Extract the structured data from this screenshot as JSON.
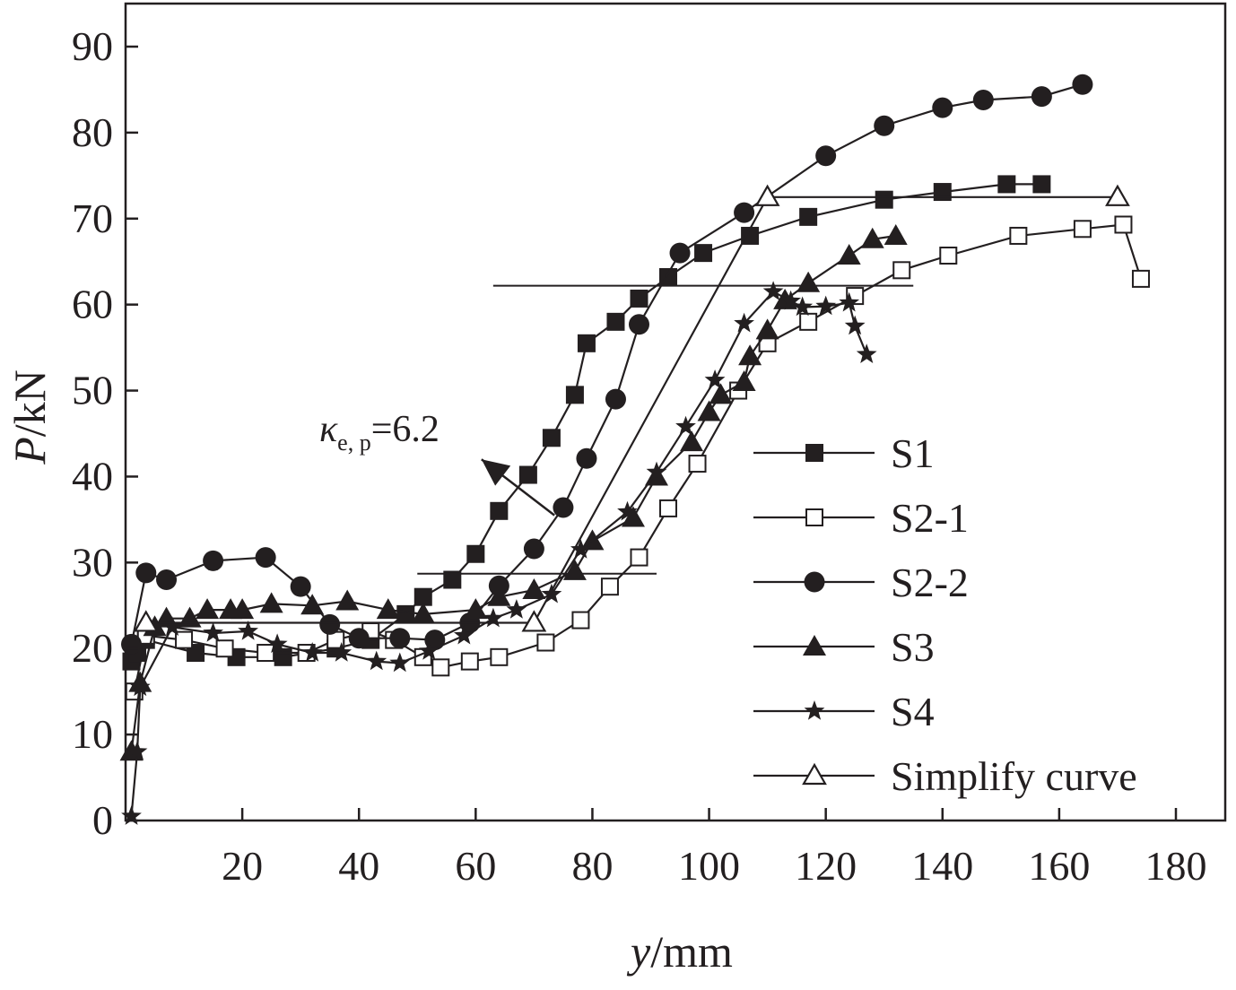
{
  "chart_data": {
    "type": "line",
    "xlabel": {
      "var": "y",
      "unit": "/mm"
    },
    "ylabel": {
      "var": "P",
      "unit": "/kN"
    },
    "xlim": [
      0,
      180
    ],
    "ylim": [
      0,
      90
    ],
    "xticks": [
      20,
      40,
      60,
      80,
      100,
      120,
      140,
      160,
      180
    ],
    "yticks": [
      0,
      10,
      20,
      30,
      40,
      50,
      60,
      70,
      80,
      90
    ],
    "grid": false,
    "legend_position": "right",
    "annotation": {
      "symbol": "κ",
      "subscript": "e, p",
      "value": "=6.2",
      "arrow_from": [
        73.5,
        35.5
      ],
      "arrow_to": [
        61,
        42
      ]
    },
    "reference_lines": [
      {
        "y": 62.2,
        "x": [
          63,
          135
        ]
      },
      {
        "y": 28.7,
        "x": [
          50,
          91
        ]
      },
      {
        "y": 23.0,
        "x": [
          5,
          68
        ]
      }
    ],
    "series": [
      {
        "name": "S1",
        "marker": "square-filled",
        "points": [
          [
            1.0,
            18.5
          ],
          [
            2.0,
            19.5
          ],
          [
            3.5,
            21.0
          ],
          [
            12,
            19.5
          ],
          [
            19,
            19
          ],
          [
            27,
            19
          ],
          [
            36,
            20
          ],
          [
            42,
            21
          ],
          [
            48,
            24
          ],
          [
            51,
            26
          ],
          [
            56,
            28
          ],
          [
            60,
            31
          ],
          [
            64,
            36
          ],
          [
            69,
            40.2
          ],
          [
            73,
            44.5
          ],
          [
            77,
            49.5
          ],
          [
            79,
            55.5
          ],
          [
            84,
            58
          ],
          [
            88,
            60.7
          ],
          [
            93,
            63.2
          ],
          [
            99,
            66
          ],
          [
            107,
            68
          ],
          [
            117,
            70.2
          ],
          [
            130,
            72.2
          ],
          [
            140,
            73.1
          ],
          [
            151,
            74
          ],
          [
            157,
            74
          ]
        ]
      },
      {
        "name": "S2-1",
        "marker": "square-open",
        "points": [
          [
            1.5,
            15.0
          ],
          [
            3.5,
            21.5
          ],
          [
            10,
            21
          ],
          [
            17,
            20
          ],
          [
            24,
            19.5
          ],
          [
            31,
            19.5
          ],
          [
            36,
            21
          ],
          [
            42,
            22
          ],
          [
            46,
            21
          ],
          [
            51,
            19
          ],
          [
            54,
            17.8
          ],
          [
            59,
            18.5
          ],
          [
            64,
            19
          ],
          [
            72,
            20.7
          ],
          [
            78,
            23.3
          ],
          [
            83,
            27.2
          ],
          [
            88,
            30.6
          ],
          [
            93,
            36.3
          ],
          [
            98,
            41.5
          ],
          [
            105,
            50
          ],
          [
            110,
            55.5
          ],
          [
            117,
            58
          ],
          [
            125,
            61
          ],
          [
            133,
            64
          ],
          [
            141,
            65.7
          ],
          [
            153,
            68
          ],
          [
            164,
            68.8
          ],
          [
            171,
            69.3
          ],
          [
            174,
            63
          ]
        ]
      },
      {
        "name": "S2-2",
        "marker": "circle-filled",
        "points": [
          [
            1.0,
            20.5
          ],
          [
            3.5,
            28.8
          ],
          [
            7,
            28
          ],
          [
            15,
            30.2
          ],
          [
            24,
            30.6
          ],
          [
            30,
            27.2
          ],
          [
            35,
            22.8
          ],
          [
            40,
            21.2
          ],
          [
            47,
            21.2
          ],
          [
            53,
            21
          ],
          [
            59,
            23
          ],
          [
            64,
            27.3
          ],
          [
            70,
            31.6
          ],
          [
            75,
            36.4
          ],
          [
            79,
            42.1
          ],
          [
            84,
            49
          ],
          [
            88,
            57.7
          ],
          [
            95,
            66
          ],
          [
            106,
            70.7
          ],
          [
            120,
            77.3
          ],
          [
            130,
            80.8
          ],
          [
            140,
            82.9
          ],
          [
            147,
            83.8
          ],
          [
            157,
            84.2
          ],
          [
            164,
            85.6
          ]
        ]
      },
      {
        "name": "S3",
        "marker": "triangle-filled",
        "points": [
          [
            1.0,
            8.0
          ],
          [
            2.5,
            16.0
          ],
          [
            5,
            22.5
          ],
          [
            7,
            23.5
          ],
          [
            11,
            23.5
          ],
          [
            14,
            24.5
          ],
          [
            18,
            24.5
          ],
          [
            20,
            24.5
          ],
          [
            25,
            25.2
          ],
          [
            32,
            25
          ],
          [
            38,
            25.5
          ],
          [
            45,
            24.5
          ],
          [
            51,
            24
          ],
          [
            60,
            24.5
          ],
          [
            64,
            26
          ],
          [
            70,
            26.8
          ],
          [
            77,
            29
          ],
          [
            80,
            32.5
          ],
          [
            87,
            35.2
          ],
          [
            91,
            40
          ],
          [
            97,
            44
          ],
          [
            100,
            47.5
          ],
          [
            102,
            49.5
          ],
          [
            106,
            51
          ],
          [
            107,
            54
          ],
          [
            110,
            57
          ],
          [
            113,
            60.5
          ],
          [
            117,
            62.5
          ],
          [
            124,
            65.7
          ],
          [
            128,
            67.6
          ],
          [
            132,
            68
          ]
        ]
      },
      {
        "name": "S4",
        "marker": "star-filled",
        "points": [
          [
            1.0,
            0.5
          ],
          [
            2.0,
            8.0
          ],
          [
            2.5,
            15.5
          ],
          [
            8,
            22.5
          ],
          [
            15,
            21.8
          ],
          [
            21,
            22
          ],
          [
            26,
            20.5
          ],
          [
            32,
            19.5
          ],
          [
            37,
            19.5
          ],
          [
            43,
            18.5
          ],
          [
            47,
            18.3
          ],
          [
            52,
            19.7
          ],
          [
            58,
            21.5
          ],
          [
            63,
            23.5
          ],
          [
            67,
            24.5
          ],
          [
            73,
            26.3
          ],
          [
            78,
            31.5
          ],
          [
            86,
            35.9
          ],
          [
            91,
            40.5
          ],
          [
            96,
            45.8
          ],
          [
            101,
            51.2
          ],
          [
            106,
            57.8
          ],
          [
            111,
            61.5
          ],
          [
            114,
            60.4
          ],
          [
            116,
            59.7
          ],
          [
            120,
            59.8
          ],
          [
            124,
            60.2
          ],
          [
            125,
            57.5
          ],
          [
            127,
            54.2
          ]
        ]
      },
      {
        "name": "Simplify curve",
        "marker": "triangle-open",
        "points": [
          [
            3.5,
            23.0
          ],
          [
            70,
            23.0
          ],
          [
            110,
            72.5
          ],
          [
            170,
            72.5
          ]
        ]
      }
    ]
  }
}
